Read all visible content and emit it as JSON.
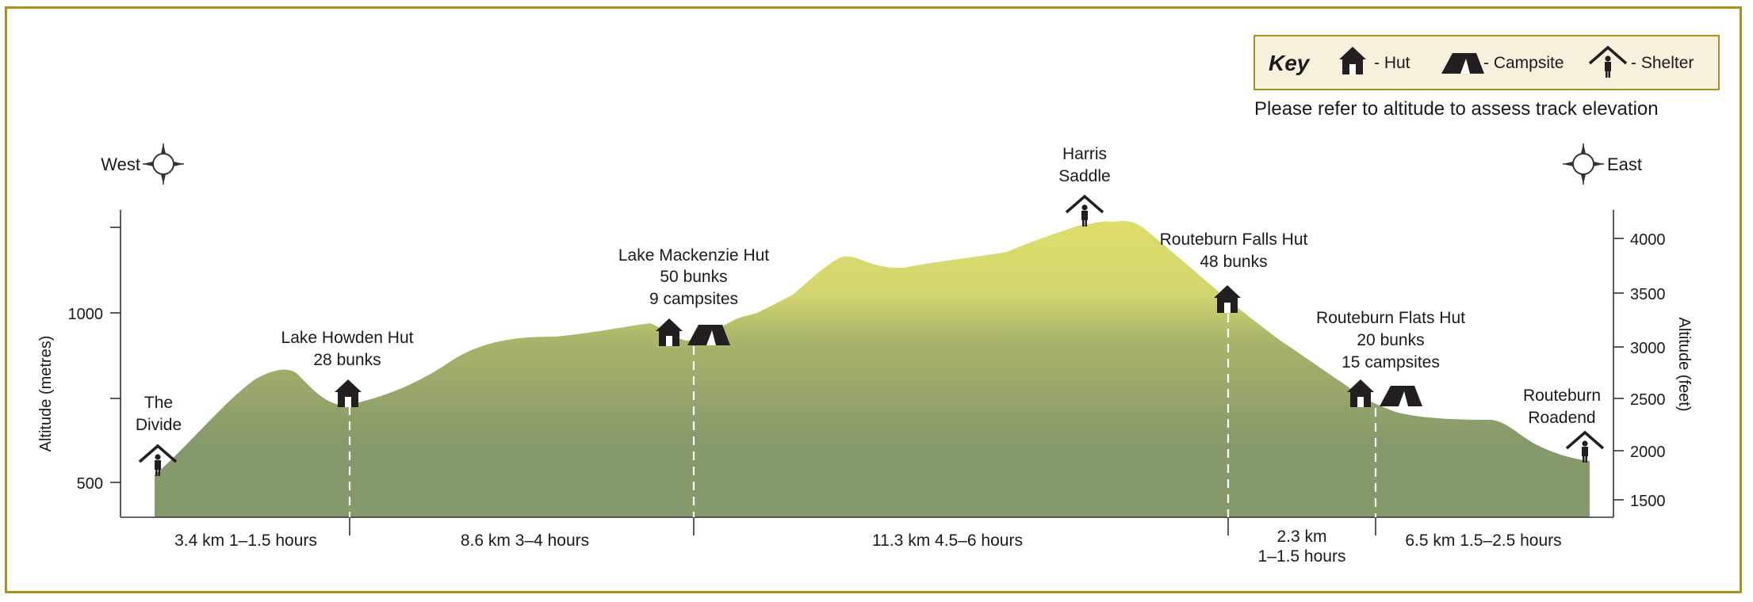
{
  "key": {
    "title": "Key",
    "hut_label": "- Hut",
    "campsite_label": "- Campsite",
    "shelter_label": "- Shelter",
    "note": "Please refer to altitude to assess track elevation"
  },
  "compass": {
    "west": "West",
    "east": "East"
  },
  "axes": {
    "left_label": "Altitude (metres)",
    "left_ticks": [
      "1000",
      "500"
    ],
    "right_label": "Altitude (feet)",
    "right_ticks": [
      "4000",
      "3500",
      "3000",
      "2500",
      "2000",
      "1500"
    ]
  },
  "locations": {
    "divide": {
      "line1": "The",
      "line2": "Divide"
    },
    "howden": {
      "line1": "Lake Howden Hut",
      "line2": "28 bunks"
    },
    "mackenzie": {
      "line1": "Lake Mackenzie Hut",
      "line2": "50 bunks",
      "line3": "9 campsites"
    },
    "harris": {
      "line1": "Harris",
      "line2": "Saddle"
    },
    "falls": {
      "line1": "Routeburn Falls Hut",
      "line2": "48 bunks"
    },
    "flats": {
      "line1": "Routeburn Flats Hut",
      "line2": "20 bunks",
      "line3": "15 campsites"
    },
    "roadend": {
      "line1": "Routeburn",
      "line2": "Roadend"
    }
  },
  "segments": [
    {
      "text": "3.4 km  1–1.5 hours"
    },
    {
      "text": "8.6 km  3–4 hours"
    },
    {
      "text": "11.3 km  4.5–6 hours"
    },
    {
      "text": "2.3 km",
      "text2": "1–1.5 hours"
    },
    {
      "text": "6.5 km  1.5–2.5 hours"
    }
  ],
  "colors": {
    "frame": "#a8921a",
    "key_bg": "#f6f0dc",
    "terrain_top": "#dede6a",
    "terrain_bottom": "#85996a",
    "icon": "#231f20"
  }
}
